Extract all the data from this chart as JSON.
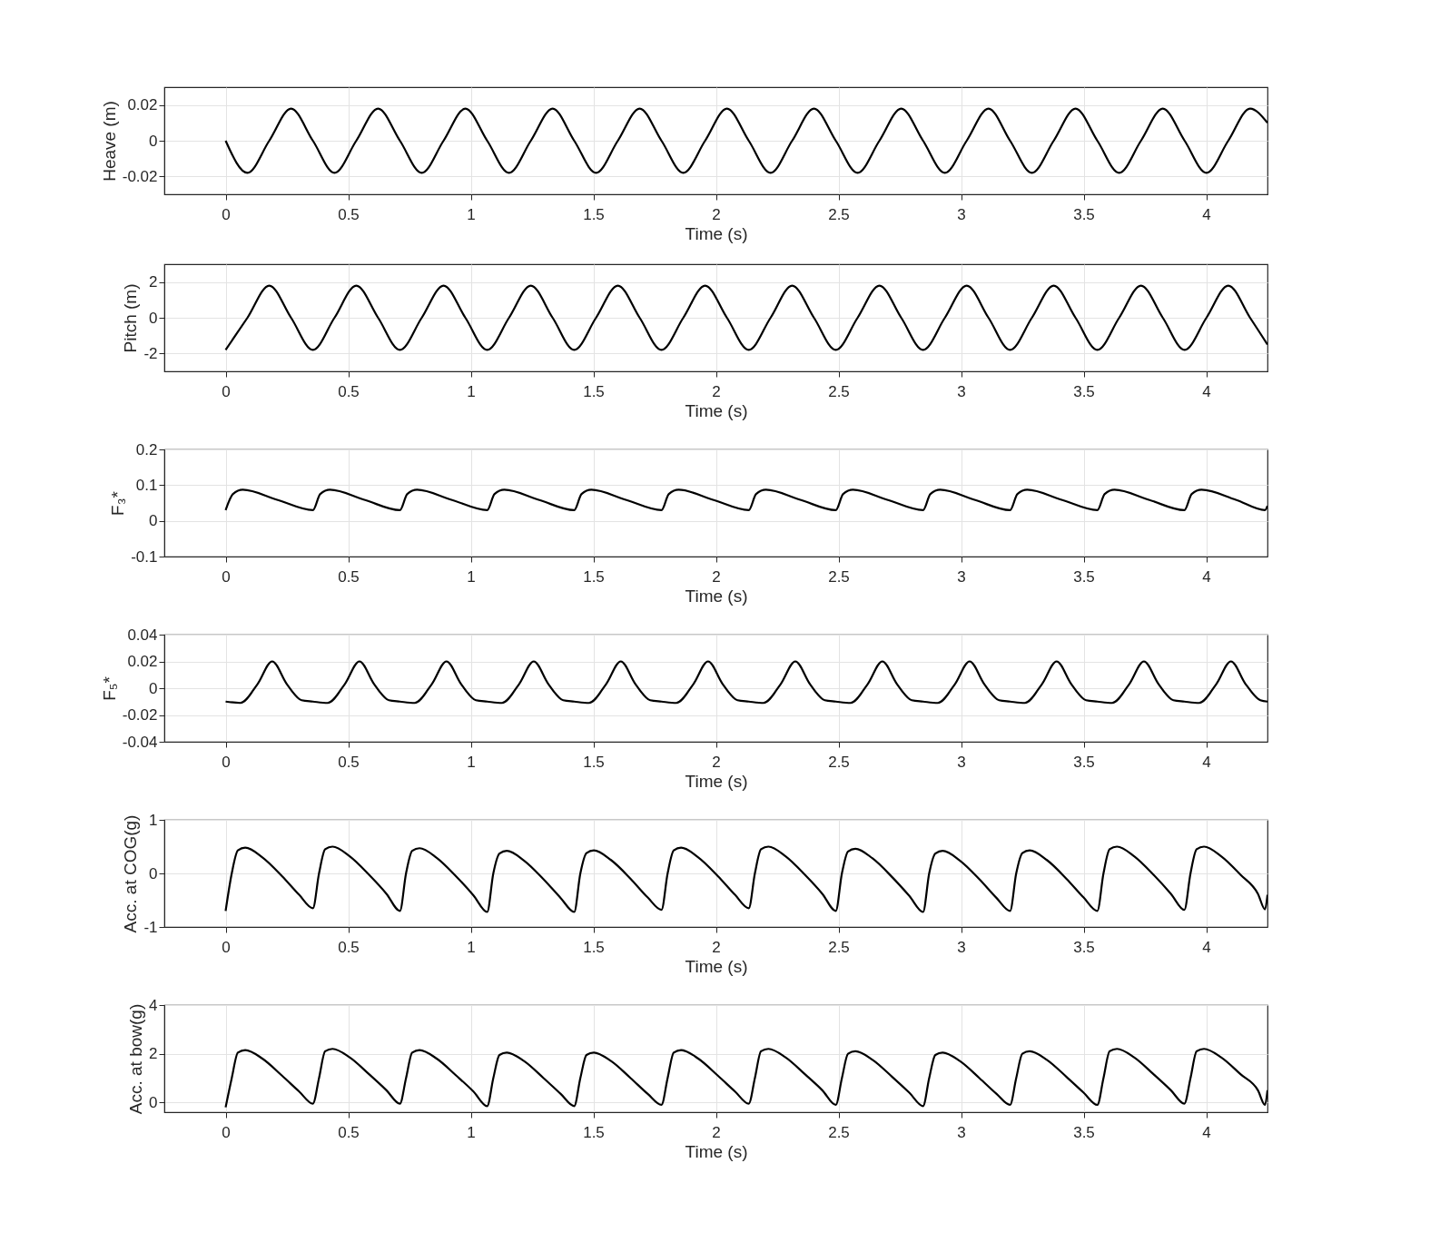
{
  "chart_data": [
    {
      "type": "line",
      "xlabel": "Time (s)",
      "ylabel": "Heave (m)",
      "grid": true,
      "line_style": "solid",
      "xlim": [
        -0.25,
        4.25
      ],
      "xticks": [
        0,
        0.5,
        1,
        1.5,
        2,
        2.5,
        3,
        3.5,
        4
      ],
      "ylim": [
        -0.03,
        0.03
      ],
      "yticks": [
        -0.02,
        0,
        0.02
      ],
      "x": [
        0,
        0.089,
        0.178,
        0.267,
        0.356,
        0.444,
        0.533,
        0.622,
        0.711,
        0.8,
        0.889,
        0.978,
        1.067,
        1.156,
        1.245,
        1.334,
        1.422,
        1.511,
        1.6,
        1.689,
        1.778,
        1.867,
        1.956,
        2.045,
        2.134,
        2.223,
        2.311,
        2.4,
        2.489,
        2.578,
        2.667,
        2.756,
        2.845,
        2.934,
        3.023,
        3.112,
        3.2,
        3.289,
        3.378,
        3.467,
        3.556,
        3.645,
        3.734,
        3.823,
        3.912,
        4.001,
        4.09,
        4.179,
        4.25
      ],
      "series": [
        {
          "color": "#000000",
          "values": [
            0,
            -0.018,
            0,
            0.018,
            0,
            -0.018,
            0,
            0.018,
            0,
            -0.018,
            0,
            0.018,
            0,
            -0.018,
            0,
            0.018,
            0,
            -0.018,
            0,
            0.018,
            0,
            -0.018,
            0,
            0.018,
            0,
            -0.018,
            0,
            0.018,
            0,
            -0.018,
            0,
            0.018,
            0,
            -0.018,
            0,
            0.018,
            0,
            -0.018,
            0,
            0.018,
            0,
            -0.018,
            0,
            0.018,
            0,
            -0.018,
            0,
            0.018,
            0.01
          ]
        }
      ]
    },
    {
      "type": "line",
      "xlabel": "Time (s)",
      "ylabel": "Pitch (m)",
      "grid": true,
      "line_style": "solid",
      "xlim": [
        -0.25,
        4.25
      ],
      "xticks": [
        0,
        0.5,
        1,
        1.5,
        2,
        2.5,
        3,
        3.5,
        4
      ],
      "ylim": [
        -3,
        3
      ],
      "yticks": [
        -2,
        0,
        2
      ],
      "x": [
        0,
        0.089,
        0.178,
        0.267,
        0.356,
        0.444,
        0.533,
        0.622,
        0.711,
        0.8,
        0.889,
        0.978,
        1.067,
        1.156,
        1.245,
        1.334,
        1.422,
        1.511,
        1.6,
        1.689,
        1.778,
        1.867,
        1.956,
        2.045,
        2.134,
        2.223,
        2.311,
        2.4,
        2.489,
        2.578,
        2.667,
        2.756,
        2.845,
        2.934,
        3.023,
        3.112,
        3.2,
        3.289,
        3.378,
        3.467,
        3.556,
        3.645,
        3.734,
        3.823,
        3.912,
        4.001,
        4.09,
        4.179,
        4.25
      ],
      "series": [
        {
          "color": "#000000",
          "values": [
            -1.8,
            0,
            1.8,
            0,
            -1.8,
            0,
            1.8,
            0,
            -1.8,
            0,
            1.8,
            0,
            -1.8,
            0,
            1.8,
            0,
            -1.8,
            0,
            1.8,
            0,
            -1.8,
            0,
            1.8,
            0,
            -1.8,
            0,
            1.8,
            0,
            -1.8,
            0,
            1.8,
            0,
            -1.8,
            0,
            1.8,
            0,
            -1.8,
            0,
            1.8,
            0,
            -1.8,
            0,
            1.8,
            0,
            -1.8,
            0,
            1.8,
            0,
            -1.5
          ]
        }
      ]
    },
    {
      "type": "line",
      "xlabel": "Time (s)",
      "ylabel": "F₃*",
      "grid": true,
      "line_style": "solid",
      "xlim": [
        -0.25,
        4.25
      ],
      "xticks": [
        0,
        0.5,
        1,
        1.5,
        2,
        2.5,
        3,
        3.5,
        4
      ],
      "ylim": [
        -0.1,
        0.2
      ],
      "yticks": [
        -0.1,
        0,
        0.1,
        0.2
      ],
      "x": [
        0,
        0.03,
        0.07,
        0.21,
        0.356,
        0.386,
        0.426,
        0.566,
        0.711,
        0.741,
        0.781,
        0.921,
        1.067,
        1.097,
        1.137,
        1.277,
        1.422,
        1.452,
        1.492,
        1.632,
        1.778,
        1.808,
        1.848,
        1.988,
        2.134,
        2.164,
        2.204,
        2.344,
        2.489,
        2.519,
        2.559,
        2.699,
        2.845,
        2.875,
        2.915,
        3.055,
        3.2,
        3.23,
        3.27,
        3.41,
        3.556,
        3.586,
        3.626,
        3.766,
        3.911,
        3.941,
        3.981,
        4.121,
        4.24,
        4.25
      ],
      "series": [
        {
          "color": "#000000",
          "values": [
            0.03,
            0.075,
            0.087,
            0.059,
            0.03,
            0.075,
            0.087,
            0.059,
            0.03,
            0.075,
            0.087,
            0.059,
            0.03,
            0.075,
            0.087,
            0.059,
            0.03,
            0.075,
            0.087,
            0.059,
            0.03,
            0.075,
            0.087,
            0.059,
            0.03,
            0.075,
            0.087,
            0.059,
            0.03,
            0.075,
            0.087,
            0.059,
            0.03,
            0.075,
            0.087,
            0.059,
            0.03,
            0.075,
            0.087,
            0.059,
            0.03,
            0.075,
            0.087,
            0.059,
            0.03,
            0.075,
            0.087,
            0.059,
            0.03,
            0.042
          ]
        }
      ]
    },
    {
      "type": "line",
      "xlabel": "Time (s)",
      "ylabel": "F₅*",
      "grid": true,
      "line_style": "solid",
      "xlim": [
        -0.25,
        4.25
      ],
      "xticks": [
        0,
        0.5,
        1,
        1.5,
        2,
        2.5,
        3,
        3.5,
        4
      ],
      "ylim": [
        -0.04,
        0.04
      ],
      "yticks": [
        -0.04,
        -0.02,
        0,
        0.02,
        0.04
      ],
      "x": [
        0,
        0.06,
        0.13,
        0.19,
        0.25,
        0.31,
        0.356,
        0.416,
        0.486,
        0.546,
        0.606,
        0.666,
        0.711,
        0.771,
        0.841,
        0.901,
        0.961,
        1.021,
        1.067,
        1.127,
        1.197,
        1.257,
        1.317,
        1.377,
        1.422,
        1.482,
        1.552,
        1.612,
        1.672,
        1.732,
        1.778,
        1.838,
        1.908,
        1.968,
        2.028,
        2.088,
        2.134,
        2.194,
        2.264,
        2.324,
        2.384,
        2.444,
        2.489,
        2.549,
        2.619,
        2.679,
        2.739,
        2.799,
        2.845,
        2.905,
        2.975,
        3.035,
        3.095,
        3.155,
        3.2,
        3.26,
        3.33,
        3.39,
        3.45,
        3.51,
        3.556,
        3.616,
        3.686,
        3.746,
        3.806,
        3.866,
        3.911,
        3.971,
        4.041,
        4.101,
        4.161,
        4.221,
        4.25
      ],
      "series": [
        {
          "color": "#000000",
          "values": [
            -0.01,
            -0.011,
            0.003,
            0.02,
            0.003,
            -0.009,
            -0.01,
            -0.011,
            0.003,
            0.02,
            0.003,
            -0.009,
            -0.01,
            -0.011,
            0.003,
            0.02,
            0.003,
            -0.009,
            -0.01,
            -0.011,
            0.003,
            0.02,
            0.003,
            -0.009,
            -0.01,
            -0.011,
            0.003,
            0.02,
            0.003,
            -0.009,
            -0.01,
            -0.011,
            0.003,
            0.02,
            0.003,
            -0.009,
            -0.01,
            -0.011,
            0.003,
            0.02,
            0.003,
            -0.009,
            -0.01,
            -0.011,
            0.003,
            0.02,
            0.003,
            -0.009,
            -0.01,
            -0.011,
            0.003,
            0.02,
            0.003,
            -0.009,
            -0.01,
            -0.011,
            0.003,
            0.02,
            0.003,
            -0.009,
            -0.01,
            -0.011,
            0.003,
            0.02,
            0.003,
            -0.009,
            -0.01,
            -0.011,
            0.003,
            0.02,
            0.003,
            -0.009,
            -0.01
          ]
        }
      ]
    },
    {
      "type": "line",
      "xlabel": "Time (s)",
      "ylabel": "Acc. at COG(g)",
      "grid": true,
      "line_style": "solid",
      "xlim": [
        -0.25,
        4.25
      ],
      "xticks": [
        0,
        0.5,
        1,
        1.5,
        2,
        2.5,
        3,
        3.5,
        4
      ],
      "ylim": [
        -1,
        1
      ],
      "yticks": [
        -1,
        0,
        1
      ],
      "x": [
        0,
        0.025,
        0.05,
        0.08,
        0.15,
        0.23,
        0.3,
        0.356,
        0.381,
        0.406,
        0.436,
        0.506,
        0.586,
        0.656,
        0.711,
        0.736,
        0.761,
        0.791,
        0.861,
        0.941,
        1.011,
        1.067,
        1.092,
        1.117,
        1.147,
        1.217,
        1.297,
        1.367,
        1.422,
        1.447,
        1.472,
        1.502,
        1.572,
        1.652,
        1.722,
        1.778,
        1.803,
        1.828,
        1.858,
        1.928,
        2.008,
        2.078,
        2.134,
        2.159,
        2.184,
        2.214,
        2.284,
        2.364,
        2.434,
        2.489,
        2.514,
        2.539,
        2.569,
        2.639,
        2.719,
        2.789,
        2.845,
        2.87,
        2.895,
        2.925,
        2.995,
        3.075,
        3.145,
        3.2,
        3.225,
        3.25,
        3.28,
        3.35,
        3.43,
        3.5,
        3.556,
        3.581,
        3.606,
        3.636,
        3.706,
        3.786,
        3.856,
        3.911,
        3.936,
        3.961,
        3.991,
        4.061,
        4.141,
        4.211,
        4.24,
        4.25
      ],
      "series": [
        {
          "color": "#000000",
          "values": [
            -0.7,
            0,
            0.43,
            0.48,
            0.3,
            -0.05,
            -0.4,
            -0.65,
            0,
            0.45,
            0.5,
            0.32,
            -0.03,
            -0.38,
            -0.7,
            0,
            0.42,
            0.47,
            0.29,
            -0.06,
            -0.41,
            -0.72,
            0,
            0.37,
            0.42,
            0.24,
            -0.11,
            -0.46,
            -0.72,
            0,
            0.38,
            0.43,
            0.25,
            -0.1,
            -0.45,
            -0.68,
            0,
            0.43,
            0.48,
            0.3,
            -0.05,
            -0.4,
            -0.65,
            0,
            0.45,
            0.5,
            0.32,
            -0.03,
            -0.38,
            -0.7,
            0,
            0.41,
            0.46,
            0.28,
            -0.07,
            -0.42,
            -0.72,
            0,
            0.37,
            0.42,
            0.24,
            -0.11,
            -0.46,
            -0.7,
            0,
            0.38,
            0.43,
            0.25,
            -0.1,
            -0.45,
            -0.7,
            0,
            0.45,
            0.5,
            0.32,
            -0.03,
            -0.38,
            -0.68,
            0,
            0.45,
            0.5,
            0.32,
            -0.03,
            -0.38,
            -0.67,
            -0.4
          ]
        }
      ]
    },
    {
      "type": "line",
      "xlabel": "Time (s)",
      "ylabel": "Acc. at bow(g)",
      "grid": true,
      "line_style": "solid",
      "xlim": [
        -0.25,
        4.25
      ],
      "xticks": [
        0,
        0.5,
        1,
        1.5,
        2,
        2.5,
        3,
        3.5,
        4
      ],
      "ylim": [
        -0.4,
        4
      ],
      "yticks": [
        0,
        2,
        4
      ],
      "x": [
        0,
        0.025,
        0.05,
        0.08,
        0.15,
        0.23,
        0.3,
        0.356,
        0.381,
        0.406,
        0.436,
        0.506,
        0.586,
        0.656,
        0.711,
        0.736,
        0.761,
        0.791,
        0.861,
        0.941,
        1.011,
        1.067,
        1.092,
        1.117,
        1.147,
        1.217,
        1.297,
        1.367,
        1.422,
        1.447,
        1.472,
        1.502,
        1.572,
        1.652,
        1.722,
        1.778,
        1.803,
        1.828,
        1.858,
        1.928,
        2.008,
        2.078,
        2.134,
        2.159,
        2.184,
        2.214,
        2.284,
        2.364,
        2.434,
        2.489,
        2.514,
        2.539,
        2.569,
        2.639,
        2.719,
        2.789,
        2.845,
        2.87,
        2.895,
        2.925,
        2.995,
        3.075,
        3.145,
        3.2,
        3.225,
        3.25,
        3.28,
        3.35,
        3.43,
        3.5,
        3.556,
        3.581,
        3.606,
        3.636,
        3.706,
        3.786,
        3.856,
        3.911,
        3.936,
        3.961,
        3.991,
        4.061,
        4.141,
        4.211,
        4.24,
        4.25
      ],
      "series": [
        {
          "color": "#000000",
          "values": [
            -0.2,
            1.0,
            2.05,
            2.15,
            1.8,
            1.1,
            0.45,
            -0.05,
            1.0,
            2.1,
            2.2,
            1.85,
            1.15,
            0.5,
            -0.05,
            1.0,
            2.05,
            2.15,
            1.8,
            1.1,
            0.45,
            -0.15,
            1.0,
            1.95,
            2.05,
            1.7,
            1.0,
            0.35,
            -0.15,
            1.0,
            1.95,
            2.05,
            1.7,
            1.0,
            0.35,
            -0.1,
            1.0,
            2.05,
            2.15,
            1.8,
            1.1,
            0.45,
            -0.05,
            1.0,
            2.1,
            2.2,
            1.85,
            1.15,
            0.5,
            -0.1,
            1.0,
            2.0,
            2.1,
            1.75,
            1.05,
            0.4,
            -0.15,
            1.0,
            1.95,
            2.05,
            1.7,
            1.0,
            0.35,
            -0.1,
            1.0,
            2.0,
            2.1,
            1.75,
            1.05,
            0.4,
            -0.1,
            1.0,
            2.1,
            2.2,
            1.85,
            1.15,
            0.5,
            -0.05,
            1.0,
            2.1,
            2.2,
            1.85,
            1.15,
            0.5,
            -0.1,
            0.5
          ]
        }
      ]
    }
  ]
}
